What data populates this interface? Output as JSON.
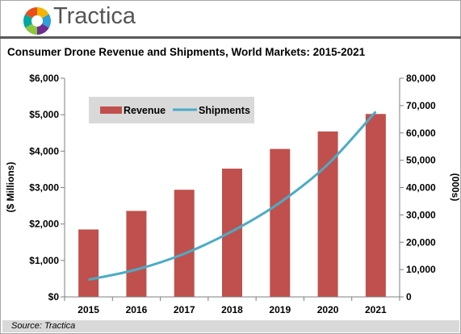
{
  "header": {
    "brand": "Tractica"
  },
  "colors": {
    "revenue": "#c0504d",
    "shipments": "#4bacc6",
    "legend_bg": "#d9d9d9"
  },
  "chart_data": {
    "type": "bar",
    "title": "Consumer Drone Revenue and Shipments, World Markets: 2015-2021",
    "categories": [
      "2015",
      "2016",
      "2017",
      "2018",
      "2019",
      "2020",
      "2021"
    ],
    "series": [
      {
        "name": "Revenue",
        "type": "bar",
        "axis": "left",
        "values": [
          1850,
          2360,
          2940,
          3520,
          4060,
          4540,
          5020
        ]
      },
      {
        "name": "Shipments",
        "type": "line",
        "axis": "right",
        "values": [
          6300,
          10000,
          15800,
          24000,
          34500,
          48500,
          67800
        ]
      }
    ],
    "y_left": {
      "label": "($ Millions)",
      "lim": [
        0,
        6000
      ],
      "ticks": [
        "$0",
        "$1,000",
        "$2,000",
        "$3,000",
        "$4,000",
        "$5,000",
        "$6,000"
      ]
    },
    "y_right": {
      "label": "(000s)",
      "lim": [
        0,
        80000
      ],
      "ticks": [
        "0",
        "10,000",
        "20,000",
        "30,000",
        "40,000",
        "50,000",
        "60,000",
        "70,000",
        "80,000"
      ]
    },
    "grid": false,
    "legend": "top-left"
  },
  "footer": {
    "source": "Source: Tractica"
  }
}
